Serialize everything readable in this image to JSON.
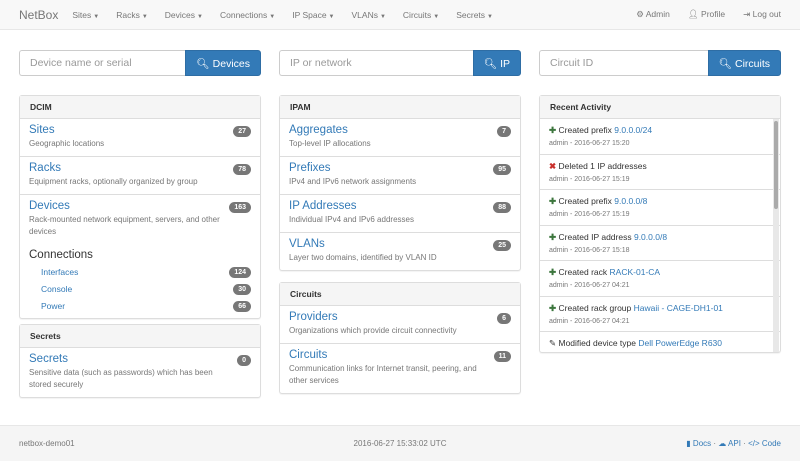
{
  "nav": {
    "brand": "NetBox",
    "menus": [
      "Sites",
      "Racks",
      "Devices",
      "Connections",
      "IP Space",
      "VLANs",
      "Circuits",
      "Secrets"
    ],
    "admin": "Admin",
    "profile": "Profile",
    "logout": "Log out"
  },
  "search": [
    {
      "placeholder": "Device name or serial",
      "button": "Devices"
    },
    {
      "placeholder": "IP or network",
      "button": "IP"
    },
    {
      "placeholder": "Circuit ID",
      "button": "Circuits"
    }
  ],
  "dcim": {
    "title": "DCIM",
    "items": [
      {
        "t": "Sites",
        "d": "Geographic locations",
        "n": "27"
      },
      {
        "t": "Racks",
        "d": "Equipment racks, optionally organized by group",
        "n": "78"
      },
      {
        "t": "Devices",
        "d": "Rack-mounted network equipment, servers, and other devices",
        "n": "163"
      }
    ],
    "connections": {
      "t": "Connections",
      "items": [
        {
          "t": "Interfaces",
          "n": "124"
        },
        {
          "t": "Console",
          "n": "30"
        },
        {
          "t": "Power",
          "n": "66"
        }
      ]
    }
  },
  "secrets": {
    "title": "Secrets",
    "items": [
      {
        "t": "Secrets",
        "d": "Sensitive data (such as passwords) which has been stored securely",
        "n": "0"
      }
    ]
  },
  "ipam": {
    "title": "IPAM",
    "items": [
      {
        "t": "Aggregates",
        "d": "Top-level IP allocations",
        "n": "7"
      },
      {
        "t": "Prefixes",
        "d": "IPv4 and IPv6 network assignments",
        "n": "95"
      },
      {
        "t": "IP Addresses",
        "d": "Individual IPv4 and IPv6 addresses",
        "n": "88"
      },
      {
        "t": "VLANs",
        "d": "Layer two domains, identified by VLAN ID",
        "n": "25"
      }
    ]
  },
  "circuits": {
    "title": "Circuits",
    "items": [
      {
        "t": "Providers",
        "d": "Organizations which provide circuit connectivity",
        "n": "6"
      },
      {
        "t": "Circuits",
        "d": "Communication links for Internet transit, peering, and other services",
        "n": "11"
      }
    ]
  },
  "activity": {
    "title": "Recent Activity",
    "items": [
      {
        "icon": "plus",
        "text": "Created prefix",
        "link": "9.0.0.0/24",
        "meta": "admin - 2016-06-27 15:20"
      },
      {
        "icon": "x",
        "text": "Deleted 1 IP addresses",
        "link": "",
        "meta": "admin - 2016-06-27 15:19"
      },
      {
        "icon": "plus",
        "text": "Created prefix",
        "link": "9.0.0.0/8",
        "meta": "admin - 2016-06-27 15:19"
      },
      {
        "icon": "plus",
        "text": "Created IP address",
        "link": "9.0.0.0/8",
        "meta": "admin - 2016-06-27 15:18"
      },
      {
        "icon": "plus",
        "text": "Created rack",
        "link": "RACK-01-CA",
        "meta": "admin - 2016-06-27 04:21"
      },
      {
        "icon": "plus",
        "text": "Created rack group",
        "link": "Hawaii - CAGE-DH1-01",
        "meta": "admin - 2016-06-27 04:21"
      },
      {
        "icon": "pencil",
        "text": "Modified device type",
        "link": "Dell PowerEdge R630",
        "meta": ""
      }
    ]
  },
  "footer": {
    "host": "netbox-demo01",
    "time": "2016-06-27 15:33:02 UTC",
    "docs": "Docs",
    "api": "API",
    "code": "Code"
  }
}
